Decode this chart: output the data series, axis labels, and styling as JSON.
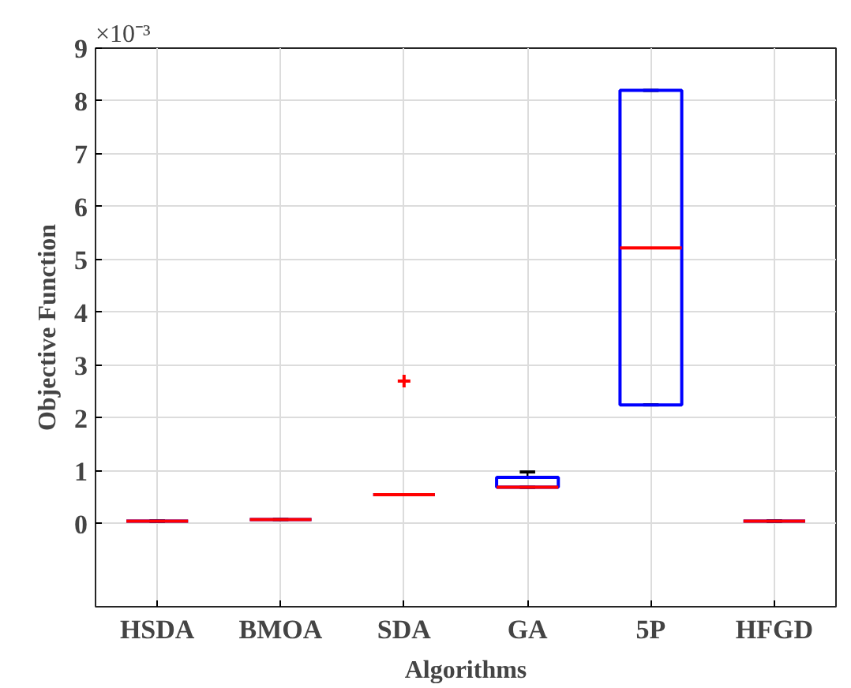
{
  "chart_data": {
    "type": "box",
    "xlabel": "Algorithms",
    "ylabel": "Objective Function",
    "annotations": [
      "×10⁻³"
    ],
    "categories": [
      "HSDA",
      "BMOA",
      "SDA",
      "GA",
      "5P",
      "HFGD"
    ],
    "boxes": [
      {
        "low": 0.05,
        "q1": 0.05,
        "median": 0.05,
        "q3": 0.05,
        "high": 0.05
      },
      {
        "low": 0.08,
        "q1": 0.08,
        "median": 0.08,
        "q3": 0.08,
        "high": 0.08
      },
      {
        "low": 0.55,
        "q1": 0.55,
        "median": 0.55,
        "q3": 0.55,
        "high": 0.55,
        "outliers": [
          2.7
        ]
      },
      {
        "low": 0.69,
        "q1": 0.69,
        "median": 0.69,
        "q3": 0.88,
        "high": 0.98
      },
      {
        "low": 2.25,
        "q1": 2.25,
        "median": 5.22,
        "q3": 8.2,
        "high": 8.2
      },
      {
        "low": 0.05,
        "q1": 0.05,
        "median": 0.05,
        "q3": 0.05,
        "high": 0.05
      }
    ],
    "color": "#0000ff",
    "ylim": [
      -1.57,
      9
    ],
    "yticks": [
      0,
      1,
      2,
      3,
      4,
      5,
      6,
      7,
      8,
      9
    ],
    "grid": true
  }
}
